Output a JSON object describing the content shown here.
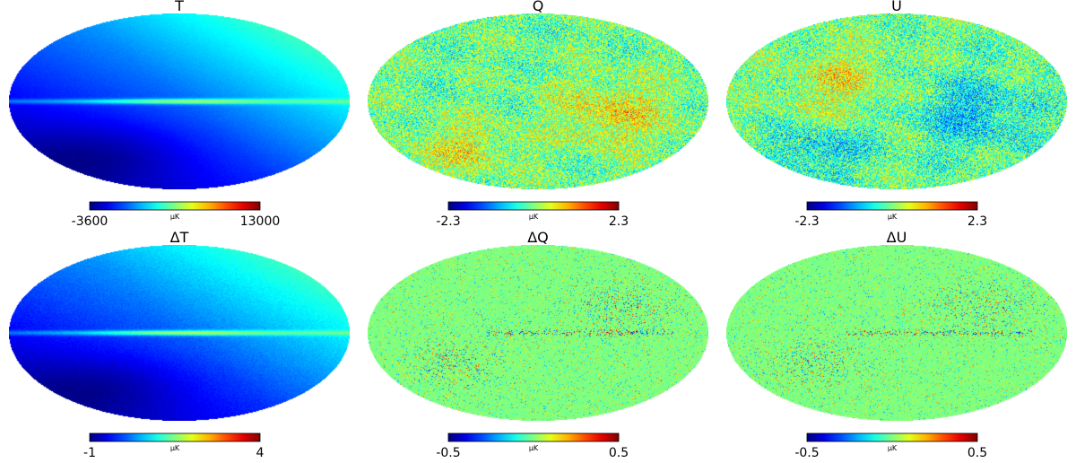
{
  "chart_data": [
    {
      "type": "heatmap",
      "projection": "mollweide",
      "title": "T",
      "colormap": "jet",
      "unit": "μK",
      "min_label": "-3600",
      "max_label": "13000",
      "vmin": -3600,
      "vmax": 13000,
      "pattern": "temperature"
    },
    {
      "type": "heatmap",
      "projection": "mollweide",
      "title": "Q",
      "colormap": "jet",
      "unit": "μK",
      "min_label": "-2.3",
      "max_label": "2.3",
      "vmin": -2.3,
      "vmax": 2.3,
      "pattern": "polarization-q"
    },
    {
      "type": "heatmap",
      "projection": "mollweide",
      "title": "U",
      "colormap": "jet",
      "unit": "μK",
      "min_label": "-2.3",
      "max_label": "2.3",
      "vmin": -2.3,
      "vmax": 2.3,
      "pattern": "polarization-u"
    },
    {
      "type": "heatmap",
      "projection": "mollweide",
      "title": "ΔT",
      "colormap": "jet",
      "unit": "μK",
      "min_label": "-1",
      "max_label": "4",
      "vmin": -1,
      "vmax": 4,
      "pattern": "temperature-residual"
    },
    {
      "type": "heatmap",
      "projection": "mollweide",
      "title": "ΔQ",
      "colormap": "jet",
      "unit": "μK",
      "min_label": "-0.5",
      "max_label": "0.5",
      "vmin": -0.5,
      "vmax": 0.5,
      "pattern": "residual-q"
    },
    {
      "type": "heatmap",
      "projection": "mollweide",
      "title": "ΔU",
      "colormap": "jet",
      "unit": "μK",
      "min_label": "-0.5",
      "max_label": "0.5",
      "vmin": -0.5,
      "vmax": 0.5,
      "pattern": "residual-u"
    }
  ]
}
